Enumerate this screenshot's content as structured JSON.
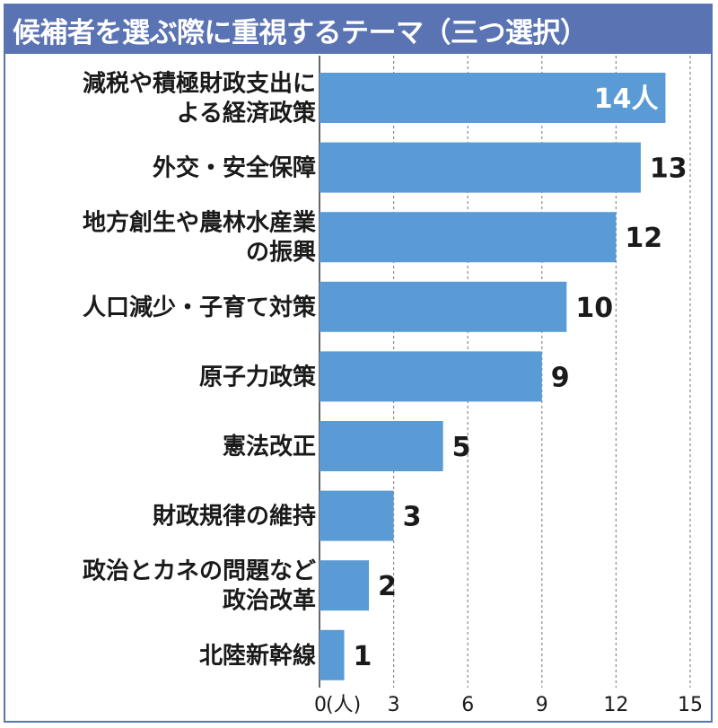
{
  "chart_data": {
    "type": "bar",
    "orientation": "horizontal",
    "title": "候補者を選ぶ際に重視するテーマ（三つ選択）",
    "categories": [
      [
        "減税や積極財政支出に",
        "よる経済政策"
      ],
      [
        "外交・安全保障"
      ],
      [
        "地方創生や農林水産業",
        "の振興"
      ],
      [
        "人口減少・子育て対策"
      ],
      [
        "原子力政策"
      ],
      [
        "憲法改正"
      ],
      [
        "財政規律の維持"
      ],
      [
        "政治とカネの問題など",
        "政治改革"
      ],
      [
        "北陸新幹線"
      ]
    ],
    "values": [
      14,
      13,
      12,
      10,
      9,
      5,
      3,
      2,
      1
    ],
    "value_labels": [
      "14人",
      "13",
      "12",
      "10",
      "9",
      "5",
      "3",
      "2",
      "1"
    ],
    "xlim": [
      0,
      15
    ],
    "x_ticks": [
      "0",
      "3",
      "6",
      "9",
      "12",
      "15"
    ],
    "x_unit": "(人)",
    "bar_color": "#5b9bd5",
    "header_color": "#5a73b2",
    "grid": true
  }
}
